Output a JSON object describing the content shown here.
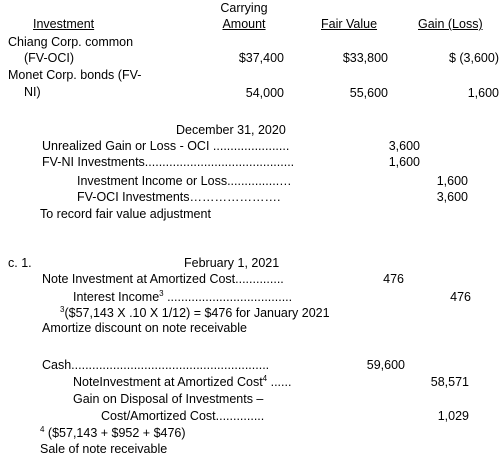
{
  "table": {
    "headers": {
      "investment": "Investment",
      "carrying_line1": "Carrying",
      "carrying_line2": "Amount",
      "fair_value": "Fair Value",
      "gain_loss": "Gain (Loss)"
    },
    "rows": [
      {
        "name_line1": "Chiang Corp. common",
        "name_line2": "(FV-OCI)",
        "carrying": "$37,400",
        "fair_value": "$33,800",
        "gain_loss": "$ (3,600)"
      },
      {
        "name_line1": "Monet Corp. bonds (FV-",
        "name_line2": "NI)",
        "carrying": "54,000",
        "fair_value": "55,600",
        "gain_loss": "1,600"
      }
    ]
  },
  "entry_dec31": {
    "date": "December 31, 2020",
    "lines": [
      {
        "account": "Unrealized Gain or Loss - OCI ......................",
        "debit": "3,600",
        "credit": ""
      },
      {
        "account": "FV-NI Investments...........................................",
        "debit": "1,600",
        "credit": ""
      },
      {
        "account": "Investment Income or Loss...............…",
        "debit": "",
        "credit": "1,600"
      },
      {
        "account": "FV-OCI Investments………………….",
        "debit": "",
        "credit": "3,600"
      }
    ],
    "memo": "To record fair value adjustment"
  },
  "entry_feb1": {
    "label": "c. 1.",
    "date": "February 1, 2021",
    "line1_account": "Note Investment at Amortized Cost..............",
    "line1_debit": "476",
    "line2_account": "Interest Income",
    "line2_sup": "3",
    "line2_dots": " ....................................",
    "line2_credit": "476",
    "footnote_sup": "3",
    "footnote_text": "($57,143 X .10 X 1/12) = $476  for January 2021",
    "memo": "Amortize discount on note receivable"
  },
  "entry_sale": {
    "line1_account": "Cash.........................................................",
    "line1_debit": "59,600",
    "line2_account": "NoteInvestment at Amortized Cost",
    "line2_sup": "4",
    "line2_dots": " ......",
    "line2_credit": "58,571",
    "line3_account": "Gain on Disposal of Investments –",
    "line4_account": "Cost/Amortized Cost..............",
    "line4_credit": "1,029",
    "footnote_sup": "4",
    "footnote_text": " ($57,143 + $952 + $476)",
    "memo": "Sale of note receivable"
  }
}
